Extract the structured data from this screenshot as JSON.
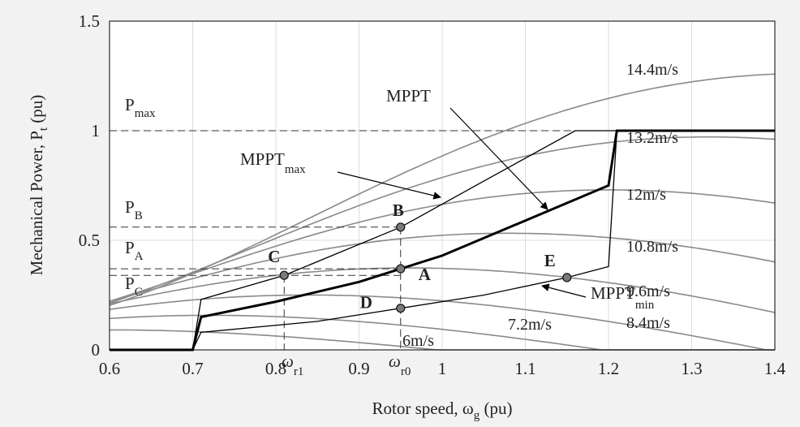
{
  "chart_data": {
    "type": "line",
    "xlabel": "Rotor speed, ω",
    "xlabel_sub": "g",
    "xlabel_unit": " (pu)",
    "ylabel": "Mechanical Power, P",
    "ylabel_sub": "t",
    "ylabel_unit": " (pu)",
    "xlim": [
      0.6,
      1.4
    ],
    "ylim": [
      0,
      1.5
    ],
    "grid": true,
    "xticks": [
      "0.6",
      "0.7",
      "0.8",
      "0.9",
      "1",
      "1.1",
      "1.2",
      "1.3",
      "1.4"
    ],
    "yticks": [
      "0",
      "0.5",
      "1",
      "1.5"
    ],
    "wind_curves": [
      {
        "name": "6m/s",
        "v": 6.0
      },
      {
        "name": "7.2m/s",
        "v": 7.2
      },
      {
        "name": "8.4m/s",
        "v": 8.4
      },
      {
        "name": "9.6m/s",
        "v": 9.6
      },
      {
        "name": "10.8m/s",
        "v": 10.8
      },
      {
        "name": "12m/s",
        "v": 12.0
      },
      {
        "name": "13.2m/s",
        "v": 13.2
      },
      {
        "name": "14.4m/s",
        "v": 14.4
      }
    ],
    "control_curves": [
      {
        "name": "MPPT",
        "style": "thick",
        "x": [
          0.6,
          0.7,
          0.71,
          0.8,
          0.9,
          0.95,
          1.0,
          1.1,
          1.2,
          1.21,
          1.4
        ],
        "y": [
          0,
          0,
          0.15,
          0.22,
          0.31,
          0.37,
          0.43,
          0.59,
          0.75,
          1.0,
          1.0
        ]
      },
      {
        "name": "MPPT_max",
        "style": "thin",
        "x": [
          0.6,
          0.7,
          0.71,
          0.81,
          0.95,
          1.05,
          1.16,
          1.4
        ],
        "y": [
          0,
          0,
          0.23,
          0.34,
          0.56,
          0.77,
          1.0,
          1.0
        ]
      },
      {
        "name": "MPPT_min",
        "style": "thin",
        "x": [
          0.6,
          0.7,
          0.71,
          0.85,
          0.95,
          1.05,
          1.15,
          1.2,
          1.21,
          1.4
        ],
        "y": [
          0,
          0,
          0.08,
          0.13,
          0.19,
          0.25,
          0.33,
          0.38,
          1.0,
          1.0
        ]
      }
    ],
    "operating_points": [
      {
        "label": "A",
        "x": 0.95,
        "y": 0.37
      },
      {
        "label": "B",
        "x": 0.95,
        "y": 0.56
      },
      {
        "label": "C",
        "x": 0.81,
        "y": 0.34
      },
      {
        "label": "D",
        "x": 0.95,
        "y": 0.19
      },
      {
        "label": "E",
        "x": 1.15,
        "y": 0.33
      }
    ],
    "power_levels": [
      {
        "name": "max",
        "y": 1.0
      },
      {
        "name": "B",
        "y": 0.56
      },
      {
        "name": "A",
        "y": 0.37
      },
      {
        "name": "C",
        "y": 0.34
      }
    ],
    "speed_markers": [
      {
        "name": "r1",
        "x": 0.81
      },
      {
        "name": "r0",
        "x": 0.95
      }
    ]
  },
  "labels": {
    "p": "P",
    "pmax_sub": "max",
    "pb_sub": "B",
    "pa_sub": "A",
    "pc_sub": "C",
    "omega": "ω",
    "r1_sub": "r1",
    "r0_sub": "r0",
    "mppt": "MPPT",
    "mppt_max_main": "MPPT",
    "mppt_max_sub": "max",
    "mppt_min_main": "MPPT",
    "mppt_min_sub": "min"
  }
}
